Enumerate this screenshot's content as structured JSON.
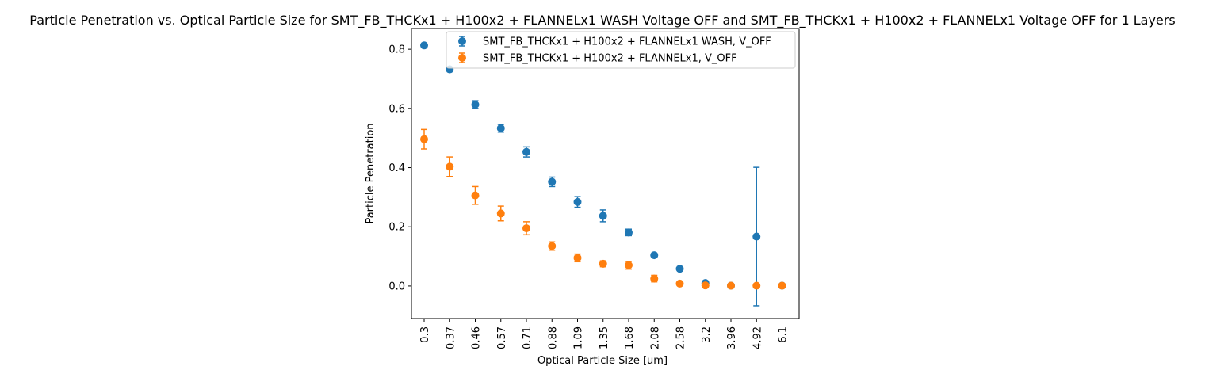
{
  "chart_data": {
    "type": "scatter",
    "title": "Particle Penetration vs. Optical Particle Size for SMT_FB_THCKx1 + H100x2 + FLANNELx1 WASH Voltage OFF and SMT_FB_THCKx1 + H100x2 + FLANNELx1 Voltage OFF for 1 Layers",
    "xlabel": "Optical Particle Size [um]",
    "ylabel": "Particle Penetration",
    "categories": [
      "0.3",
      "0.37",
      "0.46",
      "0.57",
      "0.71",
      "0.88",
      "1.09",
      "1.35",
      "1.68",
      "2.08",
      "2.58",
      "3.2",
      "3.96",
      "4.92",
      "6.1"
    ],
    "ylim": [
      -0.11,
      0.87
    ],
    "yticks": [
      "0.0",
      "0.2",
      "0.4",
      "0.6",
      "0.8"
    ],
    "grid": false,
    "legend_position": "upper-right",
    "series": [
      {
        "name": "SMT_FB_THCKx1 + H100x2 + FLANNELx1 WASH, V_OFF",
        "color": "#1f77b4",
        "values": [
          0.813,
          0.732,
          0.613,
          0.533,
          0.453,
          0.352,
          0.284,
          0.237,
          0.181,
          0.104,
          0.058,
          0.01,
          0.001,
          0.167,
          0.001
        ],
        "errors": [
          0.006,
          0.006,
          0.013,
          0.013,
          0.017,
          0.016,
          0.018,
          0.02,
          0.011,
          0.004,
          0.004,
          0.005,
          0.002,
          0.234,
          0.001
        ]
      },
      {
        "name": "SMT_FB_THCKx1 + H100x2 + FLANNELx1, V_OFF",
        "color": "#ff7f0e",
        "values": [
          0.496,
          0.403,
          0.306,
          0.245,
          0.195,
          0.135,
          0.095,
          0.075,
          0.07,
          0.025,
          0.008,
          0.002,
          0.001,
          0.001,
          0.001
        ],
        "errors": [
          0.033,
          0.033,
          0.03,
          0.025,
          0.022,
          0.014,
          0.013,
          0.01,
          0.013,
          0.011,
          0.003,
          0.002,
          0.001,
          0.001,
          0.001
        ]
      }
    ]
  }
}
